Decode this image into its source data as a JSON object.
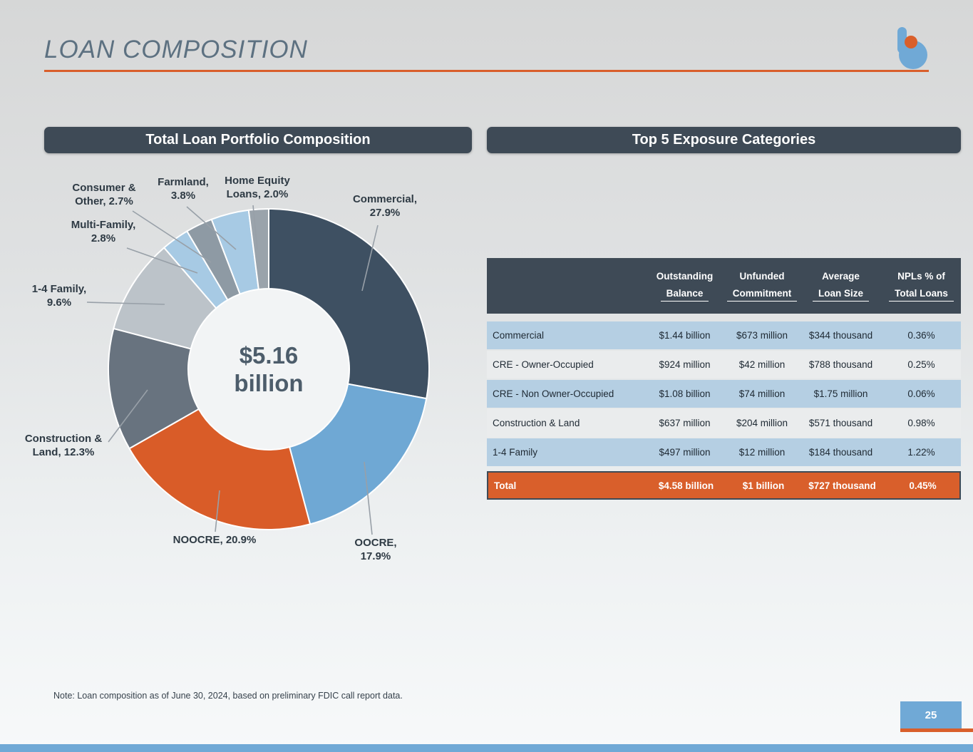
{
  "slide": {
    "title": "LOAN COMPOSITION",
    "note": "Note: Loan composition as of June 30, 2024, based on preliminary FDIC call report data.",
    "page_number": "25"
  },
  "panels": {
    "left_header": "Total Loan Portfolio Composition",
    "right_header": "Top 5 Exposure Categories"
  },
  "colors": {
    "accent_orange": "#D95F2B",
    "dark_slate": "#3E4A56",
    "brand_blue": "#70A9D6",
    "row_blue": "#B5CFE3",
    "row_gray": "#EAECED",
    "leader_line": "#98A0A8"
  },
  "chart_data": [
    {
      "type": "donut",
      "title": "Total Loan Portfolio Composition",
      "center_label_lines": [
        "$5.16",
        "billion"
      ],
      "total_label": "$5.16 billion",
      "units": "percent of total loan portfolio",
      "segments": [
        {
          "name": "Commercial",
          "value": 27.9,
          "color": "#3E5062",
          "callout_lines": [
            "Commercial,",
            "27.9%"
          ]
        },
        {
          "name": "OOCRE",
          "value": 17.9,
          "color": "#6FA8D4",
          "callout_lines": [
            "OOCRE,",
            "17.9%"
          ]
        },
        {
          "name": "NOOCRE",
          "value": 20.9,
          "color": "#D95C28",
          "callout_lines": [
            "NOOCRE, 20.9%"
          ]
        },
        {
          "name": "Construction & Land",
          "value": 12.3,
          "color": "#68737F",
          "callout_lines": [
            "Construction &",
            "Land, 12.3%"
          ]
        },
        {
          "name": "1-4 Family",
          "value": 9.6,
          "color": "#BCC3C9",
          "callout_lines": [
            "1-4 Family,",
            "9.6%"
          ]
        },
        {
          "name": "Multi-Family",
          "value": 2.8,
          "color": "#A7CAE4",
          "callout_lines": [
            "Multi-Family,",
            "2.8%"
          ]
        },
        {
          "name": "Consumer & Other",
          "value": 2.7,
          "color": "#8E9AA4",
          "callout_lines": [
            "Consumer &",
            "Other, 2.7%"
          ]
        },
        {
          "name": "Farmland",
          "value": 3.8,
          "color": "#A7CAE4",
          "callout_lines": [
            "Farmland,",
            "3.8%"
          ]
        },
        {
          "name": "Home Equity Loans",
          "value": 2.0,
          "color": "#9AA3AB",
          "callout_lines": [
            "Home Equity",
            "Loans, 2.0%"
          ]
        }
      ]
    },
    {
      "type": "table",
      "title": "Top 5 Exposure Categories",
      "columns": [
        [
          "",
          ""
        ],
        [
          "Outstanding",
          "Balance"
        ],
        [
          "Unfunded",
          "Commitment"
        ],
        [
          "Average",
          "Loan Size"
        ],
        [
          "NPLs % of",
          "Total Loans"
        ]
      ],
      "rows": [
        {
          "category": "Commercial",
          "values": [
            "$1.44 billion",
            "$673 million",
            "$344 thousand",
            "0.36%"
          ]
        },
        {
          "category": "CRE - Owner-Occupied",
          "values": [
            "$924 million",
            "$42 million",
            "$788 thousand",
            "0.25%"
          ]
        },
        {
          "category": "CRE - Non Owner-Occupied",
          "values": [
            "$1.08 billion",
            "$74 million",
            "$1.75 million",
            "0.06%"
          ]
        },
        {
          "category": "Construction & Land",
          "values": [
            "$637 million",
            "$204 million",
            "$571 thousand",
            "0.98%"
          ]
        },
        {
          "category": "1-4 Family",
          "values": [
            "$497 million",
            "$12 million",
            "$184 thousand",
            "1.22%"
          ]
        }
      ],
      "total_row": {
        "category": "Total",
        "values": [
          "$4.58 billion",
          "$1 billion",
          "$727 thousand",
          "0.45%"
        ]
      }
    }
  ]
}
